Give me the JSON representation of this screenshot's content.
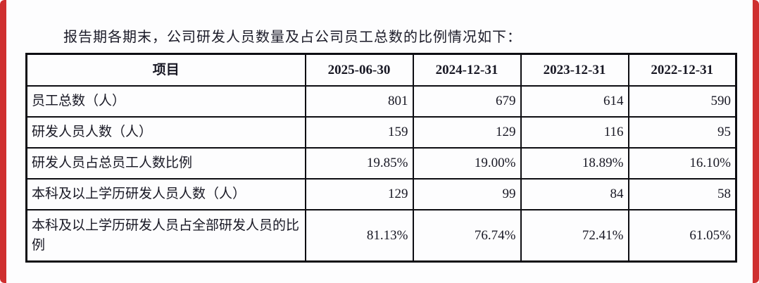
{
  "page": {
    "background": "#fdfdfe",
    "edge_bar_color": "#cf2f2f",
    "border_color": "#0d0d12"
  },
  "intro": {
    "text": "报告期各期末，公司研发人员数量及占公司员工总数的比例情况如下："
  },
  "table": {
    "header": {
      "item": "项目",
      "period1": "2025-06-30",
      "period2": "2024-12-31",
      "period3": "2023-12-31",
      "period4": "2022-12-31"
    },
    "rows": [
      {
        "label": "员工总数（人）",
        "values": [
          "801",
          "679",
          "614",
          "590"
        ]
      },
      {
        "label": "研发人员人数（人）",
        "values": [
          "159",
          "129",
          "116",
          "95"
        ]
      },
      {
        "label": "研发人员占总员工人数比例",
        "values": [
          "19.85%",
          "19.00%",
          "18.89%",
          "16.10%"
        ]
      },
      {
        "label": "本科及以上学历研发人员人数（人）",
        "values": [
          "129",
          "99",
          "84",
          "58"
        ]
      },
      {
        "label": "本科及以上学历研发人员占全部研发人员的比例",
        "values": [
          "81.13%",
          "76.74%",
          "72.41%",
          "61.05%"
        ]
      }
    ]
  }
}
